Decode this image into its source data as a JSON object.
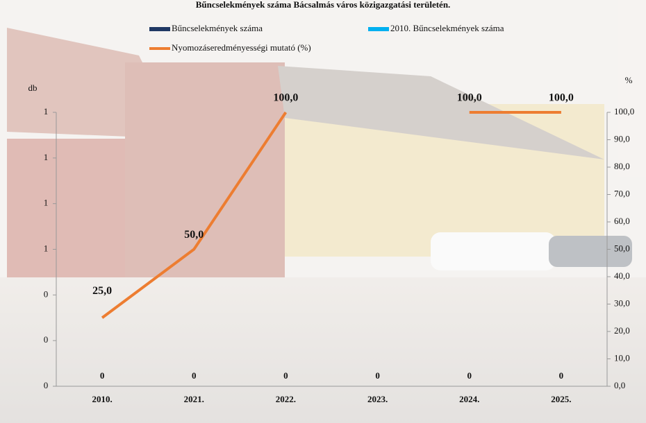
{
  "chart_data": {
    "type": "bar-line",
    "title": "Bűncselekmények száma Bácsalmás város közigazgatási területén.",
    "y_label": "db",
    "y2_label": "%",
    "categories": [
      "2010.",
      "2021.",
      "2022.",
      "2023.",
      "2024.",
      "2025."
    ],
    "series": [
      {
        "name": "Bűncselekmények száma",
        "type": "bar",
        "color": "#1f3864",
        "values": [
          0,
          0,
          0,
          0,
          0,
          0
        ]
      },
      {
        "name": "2010. Bűncselekmények száma",
        "type": "bar",
        "color": "#00b0f0",
        "values": [
          null,
          null,
          null,
          null,
          null,
          null
        ]
      },
      {
        "name": "Nyomozáseredményességi mutató (%)",
        "type": "line",
        "axis": "y2",
        "color": "#ed7d31",
        "values": [
          25,
          50,
          100,
          null,
          100,
          100
        ],
        "value_labels": [
          "25,0",
          "50,0",
          "100,0",
          null,
          "100,0",
          "100,0"
        ]
      }
    ],
    "ylim": [
      0,
      1.2
    ],
    "yticks": [
      0,
      {
        "value": 0.2,
        "label": "0"
      },
      {
        "value": 0.4,
        "label": "0"
      },
      {
        "value": 0.6,
        "label": "1"
      },
      {
        "value": 0.8,
        "label": "1"
      },
      {
        "value": 1.0,
        "label": "1"
      },
      {
        "value": 1.2,
        "label": "1"
      }
    ],
    "y2lim": [
      0,
      100
    ],
    "y2ticks": [
      {
        "value": 0,
        "label": "0,0"
      },
      {
        "value": 10,
        "label": "10,0"
      },
      {
        "value": 20,
        "label": "20,0"
      },
      {
        "value": 30,
        "label": "30,0"
      },
      {
        "value": 40,
        "label": "40,0"
      },
      {
        "value": 50,
        "label": "50,0"
      },
      {
        "value": 60,
        "label": "60,0"
      },
      {
        "value": 70,
        "label": "70,0"
      },
      {
        "value": 80,
        "label": "80,0"
      },
      {
        "value": 90,
        "label": "90,0"
      },
      {
        "value": 100,
        "label": "100,0"
      }
    ]
  }
}
